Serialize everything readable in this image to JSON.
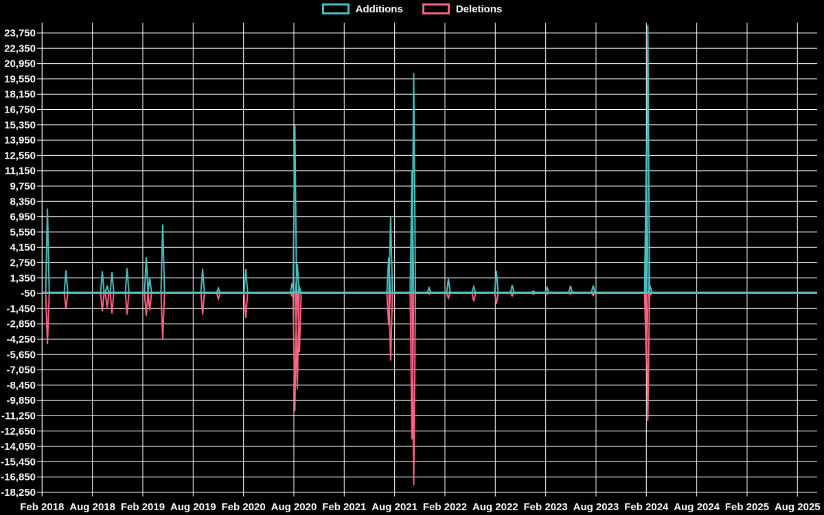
{
  "legend": {
    "additions_label": "Additions",
    "deletions_label": "Deletions"
  },
  "chart_data": {
    "type": "line",
    "title": "",
    "legend": [
      "Additions",
      "Deletions"
    ],
    "legend_position": "top-center",
    "grid": "on",
    "colors": {
      "background": "#000000",
      "grid": "#ffffff",
      "text": "#ffffff",
      "additions": "#4bc0c0",
      "deletions": "#ff6384",
      "zero_baseline_blend": "#7fa3ac"
    },
    "y_axis": {
      "step": 1400,
      "tick_values": [
        23750,
        22350,
        20950,
        19550,
        18150,
        16750,
        15350,
        13950,
        12550,
        11150,
        9750,
        8350,
        6950,
        5550,
        4150,
        2750,
        1350,
        -50,
        -1450,
        -2850,
        -4250,
        -5650,
        -7050,
        -8450,
        -9850,
        -11250,
        -12650,
        -14050,
        -15450,
        -16850,
        -18250
      ]
    },
    "x_axis": {
      "tick_labels": [
        "Feb 2018",
        "Aug 2018",
        "Feb 2019",
        "Aug 2019",
        "Feb 2020",
        "Aug 2020",
        "Feb 2021",
        "Aug 2021",
        "Feb 2022",
        "Aug 2022",
        "Feb 2023",
        "Aug 2023",
        "Feb 2024",
        "Aug 2024",
        "Feb 2025",
        "Aug 2025"
      ],
      "tick_positions": [
        2018.083,
        2018.583,
        2019.083,
        2019.583,
        2020.083,
        2020.583,
        2021.083,
        2021.583,
        2022.083,
        2022.583,
        2023.083,
        2023.583,
        2024.083,
        2024.583,
        2025.083,
        2025.583
      ],
      "domain": [
        2018.083,
        2025.78
      ]
    },
    "series": [
      {
        "name": "Additions",
        "sign": "positive"
      },
      {
        "name": "Deletions",
        "sign": "negative"
      }
    ],
    "baseline_value": 0,
    "points": [
      {
        "date": "Feb 2018",
        "t": 2018.136,
        "additions": 7700,
        "deletions": -4700
      },
      {
        "date": "Apr 2018",
        "t": 2018.32,
        "additions": 2050,
        "deletions": -1500
      },
      {
        "date": "Sep 2018",
        "t": 2018.681,
        "additions": 1950,
        "deletions": -1700
      },
      {
        "date": "Sep 2018",
        "t": 2018.729,
        "additions": 650,
        "deletions": -1350
      },
      {
        "date": "Oct 2018",
        "t": 2018.777,
        "additions": 1900,
        "deletions": -1900
      },
      {
        "date": "Dec 2018",
        "t": 2018.927,
        "additions": 2250,
        "deletions": -2000
      },
      {
        "date": "Feb 2019",
        "t": 2019.117,
        "additions": 3250,
        "deletions": -2100
      },
      {
        "date": "Mar 2019",
        "t": 2019.152,
        "additions": 1350,
        "deletions": -1600
      },
      {
        "date": "Apr 2019",
        "t": 2019.281,
        "additions": 6250,
        "deletions": -4250
      },
      {
        "date": "Sep 2019",
        "t": 2019.677,
        "additions": 2200,
        "deletions": -2000
      },
      {
        "date": "Nov 2019",
        "t": 2019.833,
        "additions": 420,
        "deletions": -570
      },
      {
        "date": "Feb 2020",
        "t": 2020.106,
        "additions": 2150,
        "deletions": -2300
      },
      {
        "date": "Jul 2020",
        "t": 2020.566,
        "additions": 900,
        "deletions": -300
      },
      {
        "date": "Aug 2020",
        "t": 2020.593,
        "additions": 15350,
        "deletions": -10800
      },
      {
        "date": "Aug 2020",
        "t": 2020.617,
        "additions": 2650,
        "deletions": -8800
      },
      {
        "date": "Aug 2020",
        "t": 2020.638,
        "additions": 500,
        "deletions": -5450
      },
      {
        "date": "Jul 2021",
        "t": 2021.524,
        "additions": 3200,
        "deletions": -2950
      },
      {
        "date": "Jul 2021",
        "t": 2021.544,
        "additions": 6950,
        "deletions": -6200
      },
      {
        "date": "Oct 2021",
        "t": 2021.755,
        "additions": 11100,
        "deletions": -13400
      },
      {
        "date": "Oct 2021",
        "t": 2021.773,
        "additions": 20100,
        "deletions": -17600
      },
      {
        "date": "Dec 2021",
        "t": 2021.926,
        "additions": 450,
        "deletions": -120
      },
      {
        "date": "Feb 2022",
        "t": 2022.117,
        "additions": 1310,
        "deletions": -500
      },
      {
        "date": "May 2022",
        "t": 2022.369,
        "additions": 550,
        "deletions": -780
      },
      {
        "date": "Aug 2022",
        "t": 2022.594,
        "additions": 2000,
        "deletions": -1050
      },
      {
        "date": "Oct 2022",
        "t": 2022.751,
        "additions": 700,
        "deletions": -300
      },
      {
        "date": "Dec 2022",
        "t": 2022.962,
        "additions": 160,
        "deletions": -150
      },
      {
        "date": "Feb 2023",
        "t": 2023.098,
        "additions": 475,
        "deletions": -150
      },
      {
        "date": "May 2023",
        "t": 2023.33,
        "additions": 640,
        "deletions": -150
      },
      {
        "date": "Jul 2023",
        "t": 2023.555,
        "additions": 660,
        "deletions": -260
      },
      {
        "date": "Feb 2024",
        "t": 2024.083,
        "additions": 13000,
        "deletions": -6300
      },
      {
        "date": "Feb 2024",
        "t": 2024.097,
        "additions": 24450,
        "deletions": -11700
      },
      {
        "date": "Feb 2024",
        "t": 2024.124,
        "additions": 500,
        "deletions": -180
      }
    ]
  }
}
